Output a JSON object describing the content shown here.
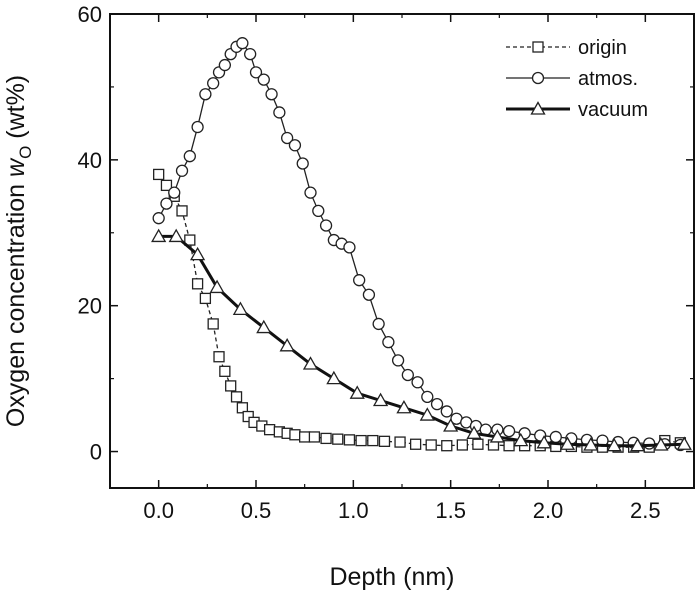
{
  "chart_data": {
    "type": "line",
    "title": "",
    "xlabel": "Depth (nm)",
    "ylabel_main": "Oxygen concentration ",
    "ylabel_symbol": "w",
    "ylabel_sub": "O",
    "ylabel_unit": " (wt%)",
    "xlim": [
      -0.25,
      2.75
    ],
    "ylim": [
      -5,
      60
    ],
    "x_ticks": [
      0.0,
      0.5,
      1.0,
      1.5,
      2.0,
      2.5
    ],
    "x_tick_labels": [
      "0.0",
      "0.5",
      "1.0",
      "1.5",
      "2.0",
      "2.5"
    ],
    "y_ticks": [
      0,
      20,
      40,
      60
    ],
    "y_tick_labels": [
      "0",
      "20",
      "40",
      "60"
    ],
    "legend_position": "top-right",
    "series": [
      {
        "name": "origin",
        "marker": "square",
        "line": "dashed",
        "x": [
          0.0,
          0.04,
          0.08,
          0.12,
          0.16,
          0.2,
          0.24,
          0.28,
          0.31,
          0.34,
          0.37,
          0.4,
          0.43,
          0.46,
          0.49,
          0.53,
          0.57,
          0.62,
          0.66,
          0.7,
          0.75,
          0.8,
          0.86,
          0.92,
          0.98,
          1.04,
          1.1,
          1.16,
          1.24,
          1.32,
          1.4,
          1.48,
          1.56,
          1.64,
          1.72,
          1.8,
          1.88,
          1.96,
          2.04,
          2.12,
          2.2,
          2.28,
          2.36,
          2.44,
          2.52,
          2.6,
          2.68
        ],
        "y": [
          38.0,
          36.5,
          35.0,
          33.0,
          29.0,
          23.0,
          21.0,
          17.5,
          13.0,
          11.0,
          9.0,
          7.5,
          6.0,
          4.8,
          4.0,
          3.5,
          3.0,
          2.7,
          2.5,
          2.3,
          2.0,
          2.0,
          1.8,
          1.7,
          1.6,
          1.5,
          1.5,
          1.4,
          1.3,
          1.0,
          0.9,
          0.8,
          0.9,
          1.0,
          0.9,
          0.8,
          0.8,
          0.8,
          0.7,
          0.7,
          0.6,
          0.6,
          0.6,
          0.6,
          0.6,
          1.5,
          1.2
        ]
      },
      {
        "name": "atmos.",
        "marker": "circle",
        "line": "solid",
        "x": [
          0.0,
          0.04,
          0.08,
          0.12,
          0.16,
          0.2,
          0.24,
          0.28,
          0.31,
          0.34,
          0.37,
          0.4,
          0.43,
          0.47,
          0.5,
          0.54,
          0.58,
          0.62,
          0.66,
          0.7,
          0.74,
          0.78,
          0.82,
          0.86,
          0.9,
          0.94,
          0.98,
          1.03,
          1.08,
          1.13,
          1.18,
          1.23,
          1.28,
          1.33,
          1.38,
          1.43,
          1.48,
          1.53,
          1.58,
          1.63,
          1.68,
          1.74,
          1.8,
          1.88,
          1.96,
          2.04,
          2.12,
          2.2,
          2.28,
          2.36,
          2.44,
          2.52,
          2.6,
          2.68
        ],
        "y": [
          32.0,
          34.0,
          35.5,
          38.5,
          40.5,
          44.5,
          49.0,
          50.5,
          52.0,
          53.0,
          54.5,
          55.5,
          56.0,
          54.5,
          52.0,
          51.0,
          49.0,
          46.5,
          43.0,
          42.0,
          39.5,
          35.5,
          33.0,
          31.0,
          29.0,
          28.5,
          28.0,
          23.5,
          21.5,
          17.5,
          15.0,
          12.5,
          10.5,
          9.5,
          7.5,
          6.5,
          5.5,
          4.5,
          4.0,
          3.5,
          3.0,
          3.0,
          2.8,
          2.5,
          2.2,
          2.0,
          1.8,
          1.6,
          1.5,
          1.3,
          1.2,
          1.1,
          1.0,
          0.9
        ]
      },
      {
        "name": "vacuum",
        "marker": "triangle",
        "line": "bold",
        "x": [
          0.0,
          0.09,
          0.2,
          0.3,
          0.42,
          0.54,
          0.66,
          0.78,
          0.9,
          1.02,
          1.14,
          1.26,
          1.38,
          1.5,
          1.62,
          1.74,
          1.86,
          1.98,
          2.1,
          2.22,
          2.34,
          2.46,
          2.58,
          2.7
        ],
        "y": [
          29.5,
          29.5,
          27.0,
          22.5,
          19.5,
          17.0,
          14.5,
          12.0,
          10.0,
          8.0,
          7.0,
          6.0,
          5.0,
          3.5,
          2.5,
          2.0,
          1.5,
          1.2,
          1.0,
          0.9,
          0.8,
          0.8,
          0.9,
          1.0
        ]
      }
    ]
  }
}
